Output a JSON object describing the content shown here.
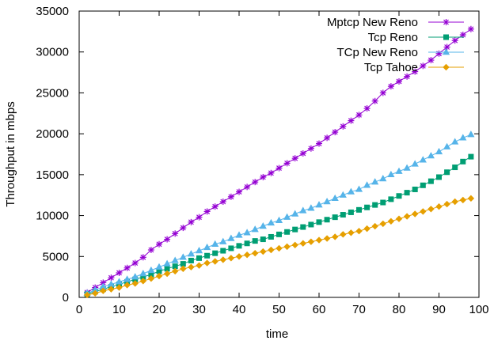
{
  "chart_data": {
    "type": "line",
    "title": "",
    "xlabel": "time",
    "ylabel": "Throughput in mbps",
    "xlim": [
      0,
      100
    ],
    "ylim": [
      0,
      35000
    ],
    "xticks": [
      "0",
      "10",
      "20",
      "30",
      "40",
      "50",
      "60",
      "70",
      "80",
      "90",
      "100"
    ],
    "yticks": [
      "0",
      "5000",
      "10000",
      "15000",
      "20000",
      "25000",
      "30000",
      "35000"
    ],
    "grid": false,
    "legend_position": "top-right",
    "x": [
      2,
      4,
      6,
      8,
      10,
      12,
      14,
      16,
      18,
      20,
      22,
      24,
      26,
      28,
      30,
      32,
      34,
      36,
      38,
      40,
      42,
      44,
      46,
      48,
      50,
      52,
      54,
      56,
      58,
      60,
      62,
      64,
      66,
      68,
      70,
      72,
      74,
      76,
      78,
      80,
      82,
      84,
      86,
      88,
      90,
      92,
      94,
      96,
      98
    ],
    "series": [
      {
        "name": "Mptcp New Reno",
        "color": "#9400d3",
        "marker": "asterisk",
        "values": [
          600,
          1200,
          1800,
          2400,
          3000,
          3600,
          4200,
          4900,
          5800,
          6500,
          7100,
          7800,
          8500,
          9200,
          9800,
          10500,
          11100,
          11700,
          12300,
          12900,
          13500,
          14100,
          14700,
          15200,
          15800,
          16400,
          17000,
          17600,
          18200,
          18800,
          19500,
          20200,
          20900,
          21600,
          22300,
          23100,
          24000,
          25000,
          25800,
          26400,
          27000,
          27600,
          28300,
          29000,
          29800,
          30600,
          31400,
          32100,
          32800
        ]
      },
      {
        "name": "Tcp Reno",
        "color": "#009e73",
        "marker": "square",
        "values": [
          400,
          700,
          1000,
          1300,
          1600,
          1900,
          2200,
          2500,
          2800,
          3200,
          3500,
          3800,
          4100,
          4500,
          4800,
          5100,
          5400,
          5700,
          6000,
          6300,
          6600,
          6900,
          7100,
          7400,
          7700,
          8000,
          8300,
          8600,
          8900,
          9200,
          9500,
          9800,
          10100,
          10400,
          10700,
          11000,
          11300,
          11600,
          12000,
          12400,
          12800,
          13200,
          13700,
          14200,
          14700,
          15300,
          15900,
          16600,
          17200
        ]
      },
      {
        "name": "TCp New Reno",
        "color": "#56b4e9",
        "marker": "triangle",
        "values": [
          500,
          900,
          1300,
          1600,
          1900,
          2200,
          2500,
          2900,
          3300,
          3700,
          4100,
          4500,
          4900,
          5300,
          5700,
          6100,
          6500,
          6800,
          7200,
          7600,
          7900,
          8300,
          8700,
          9100,
          9400,
          9800,
          10200,
          10600,
          10900,
          11300,
          11700,
          12100,
          12500,
          12900,
          13200,
          13700,
          14100,
          14500,
          15000,
          15400,
          15800,
          16300,
          16800,
          17300,
          17800,
          18400,
          19000,
          19500,
          19900
        ]
      },
      {
        "name": "Tcp Tahoe",
        "color": "#e69f00",
        "marker": "diamond",
        "values": [
          300,
          500,
          800,
          1000,
          1200,
          1500,
          1700,
          2000,
          2300,
          2600,
          2900,
          3200,
          3500,
          3700,
          3900,
          4200,
          4400,
          4600,
          4800,
          5000,
          5200,
          5400,
          5600,
          5800,
          6000,
          6200,
          6400,
          6600,
          6800,
          7000,
          7200,
          7400,
          7700,
          7900,
          8100,
          8400,
          8700,
          9000,
          9300,
          9600,
          9900,
          10200,
          10500,
          10800,
          11100,
          11400,
          11700,
          11900,
          12100
        ]
      }
    ]
  }
}
